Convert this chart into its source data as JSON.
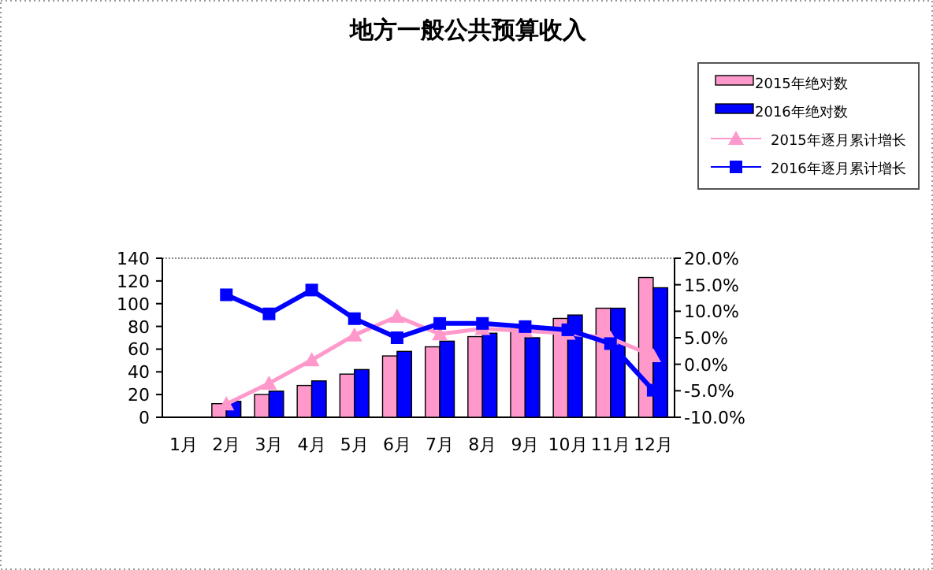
{
  "chart_data": {
    "type": "bar",
    "title": "地方一般公共预算收入",
    "categories": [
      "1月",
      "2月",
      "3月",
      "4月",
      "5月",
      "6月",
      "7月",
      "8月",
      "9月",
      "10月",
      "11月",
      "12月"
    ],
    "series": [
      {
        "name": "2015年绝对数",
        "color": "#ff99cc",
        "values": [
          null,
          12,
          20,
          28,
          38,
          54,
          62,
          71,
          78,
          87,
          96,
          123
        ]
      },
      {
        "name": "2016年绝对数",
        "color": "#0000ff",
        "values": [
          null,
          14,
          23,
          32,
          42,
          58,
          67,
          74,
          70,
          90,
          96,
          114
        ]
      },
      {
        "name": "2015年逐月累计增长",
        "type": "line",
        "axis": "y2",
        "marker": "triangle",
        "color": "#ff99cc",
        "values": [
          null,
          -7.5,
          -3.6,
          0.8,
          5.5,
          9.0,
          5.7,
          6.7,
          6.3,
          5.8,
          4.9,
          1.6
        ]
      },
      {
        "name": "2016年逐月累计增长",
        "type": "line",
        "axis": "y2",
        "marker": "square",
        "color": "#0000ff",
        "values": [
          null,
          13.1,
          9.5,
          14.0,
          8.6,
          5.0,
          7.7,
          7.7,
          7.1,
          6.5,
          3.9,
          -4.9
        ]
      }
    ],
    "ylim": [
      0,
      140
    ],
    "yticks": [
      0,
      20,
      40,
      60,
      80,
      100,
      120,
      140
    ],
    "y2lim": [
      -10,
      20
    ],
    "y2ticks": [
      {
        "value": -10,
        "label": "-10.0%"
      },
      {
        "value": -5,
        "label": "-5.0%"
      },
      {
        "value": 0,
        "label": "0.0%"
      },
      {
        "value": 5,
        "label": "5.0%"
      },
      {
        "value": 10,
        "label": "10.0%"
      },
      {
        "value": 15,
        "label": "15.0%"
      },
      {
        "value": 20,
        "label": "20.0%"
      }
    ],
    "legend": "top right",
    "grid": false
  }
}
